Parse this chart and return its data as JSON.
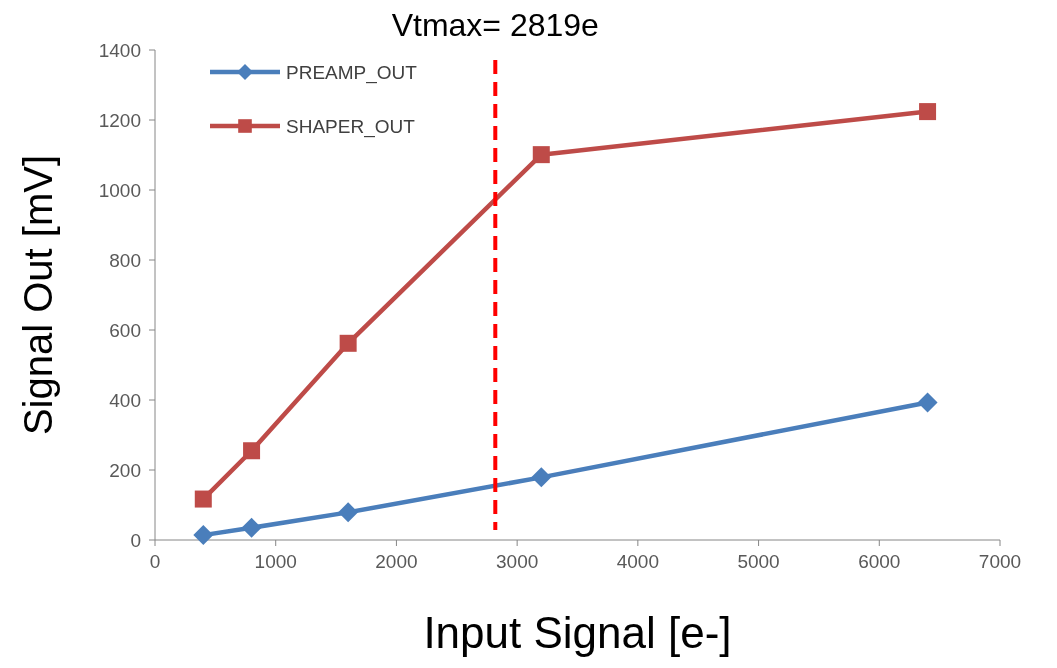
{
  "chart_data": {
    "type": "line",
    "xlabel": "Input Signal [e-]",
    "ylabel": "Signal Out [mV]",
    "x": [
      400,
      800,
      1600,
      3200,
      6400
    ],
    "series": [
      {
        "name": "PREAMP_OUT",
        "color": "#4a7ebb",
        "marker": "diamond",
        "values": [
          14,
          35,
          79,
          179,
          393
        ]
      },
      {
        "name": "SHAPER_OUT",
        "color": "#be4b48",
        "marker": "square",
        "values": [
          117,
          255,
          562,
          1101,
          1224
        ]
      }
    ],
    "xlim": [
      0,
      7000
    ],
    "xticks": [
      0,
      1000,
      2000,
      3000,
      4000,
      5000,
      6000,
      7000
    ],
    "ylim": [
      0,
      1400
    ],
    "yticks": [
      0,
      200,
      400,
      600,
      800,
      1000,
      1200,
      1400
    ],
    "grid": false,
    "legend": "top left",
    "line_style": "solid",
    "ref_lines": [
      {
        "axis": "x",
        "value": 2819,
        "label": "Vtmax= 2819e",
        "color": "#ff0000",
        "line_style": "dashed"
      }
    ]
  }
}
